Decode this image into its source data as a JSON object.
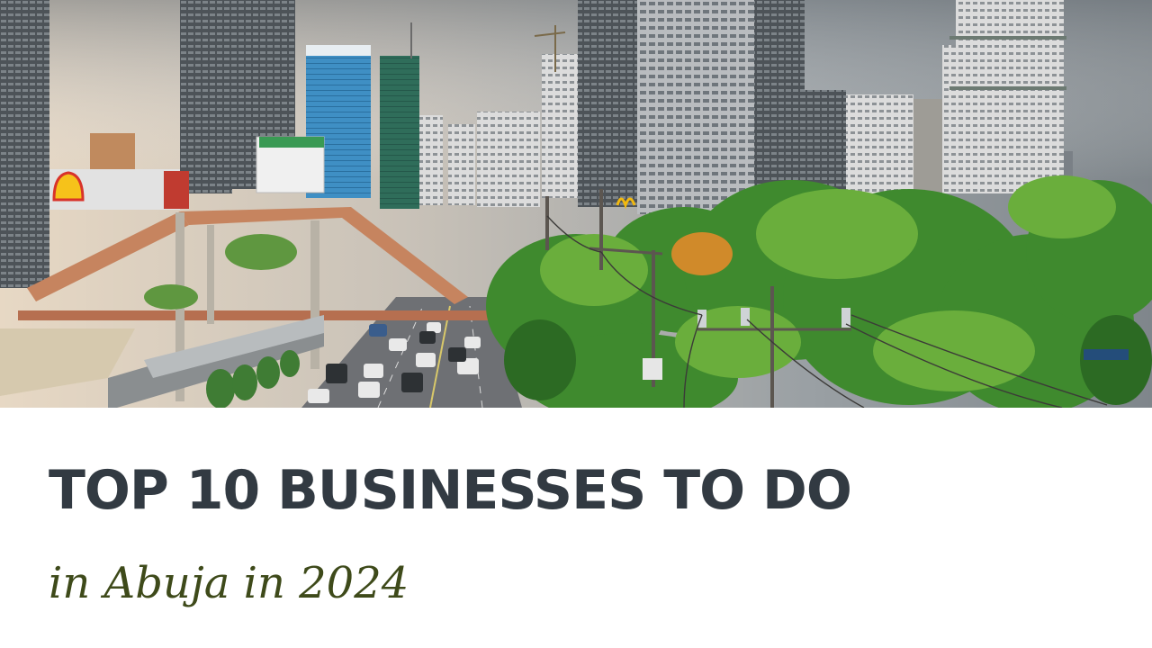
{
  "hero": {
    "signs": {
      "shell_brand": "Shell",
      "mcdonalds_brand": "McDonald's"
    }
  },
  "headline": {
    "title": "TOP 10 BUSINESSES TO DO",
    "subtitle": "in Abuja in 2024"
  },
  "colors": {
    "title": "#323a42",
    "subtitle": "#3e4a1a",
    "background": "#ffffff"
  }
}
